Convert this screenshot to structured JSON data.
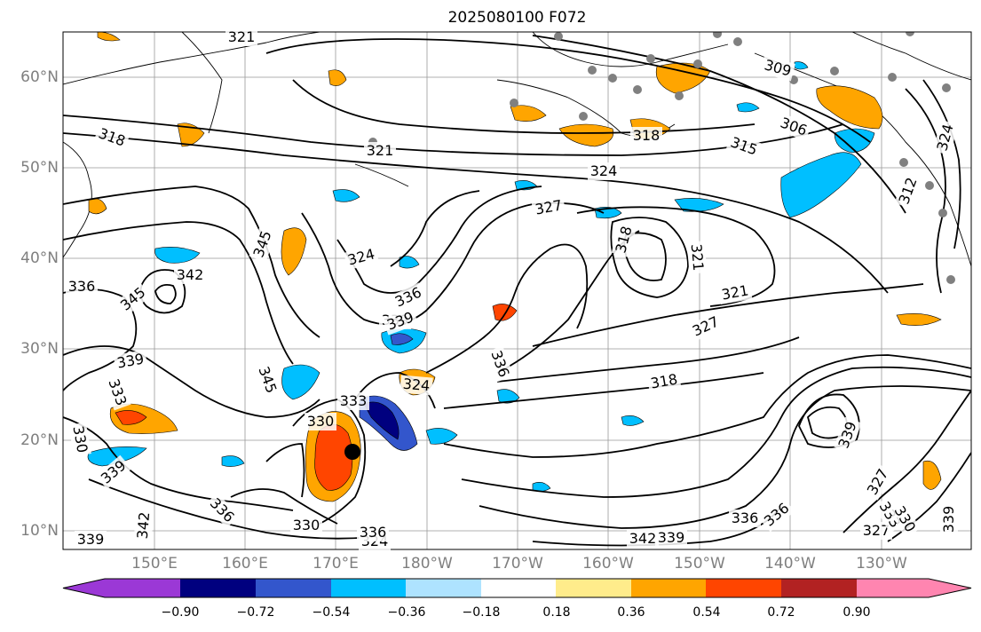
{
  "title": "2025080100 F072",
  "map": {
    "lat_labels": [
      "60°N",
      "50°N",
      "40°N",
      "30°N",
      "20°N",
      "10°N"
    ],
    "lon_labels": [
      "150°E",
      "160°E",
      "170°E",
      "180°W",
      "170°W",
      "160°W",
      "150°W",
      "140°W",
      "130°W"
    ],
    "contour_labels": [
      "321",
      "318",
      "321",
      "324",
      "327",
      "318",
      "315",
      "306",
      "309",
      "324",
      "345",
      "342",
      "336",
      "345",
      "324",
      "336",
      "339",
      "321",
      "318",
      "321",
      "327",
      "339",
      "333",
      "345",
      "330",
      "333",
      "330",
      "324",
      "336",
      "318",
      "330",
      "324",
      "336",
      "339",
      "342",
      "339",
      "339",
      "336",
      "327",
      "333",
      "330",
      "339",
      "342",
      "339",
      "336",
      "336",
      "327",
      "312",
      "339"
    ],
    "shading_legend_colors": [
      "#9b38d6",
      "#00007f",
      "#3356cc",
      "#00bfff",
      "#aee3ff",
      "#ffffff",
      "#ffec8b",
      "#ffa500",
      "#ff4500",
      "#b22222",
      "#ff85b0"
    ]
  },
  "colorbar": {
    "tick_labels": [
      "−0.90",
      "−0.72",
      "−0.54",
      "−0.36",
      "−0.18",
      "0.18",
      "0.36",
      "0.54",
      "0.72",
      "0.90"
    ],
    "colors": [
      "#9b38d6",
      "#00007f",
      "#3356cc",
      "#00bfff",
      "#aee3ff",
      "#ffffff",
      "#ffec8b",
      "#ffa500",
      "#ff4500",
      "#b22222",
      "#ff85b0"
    ]
  }
}
